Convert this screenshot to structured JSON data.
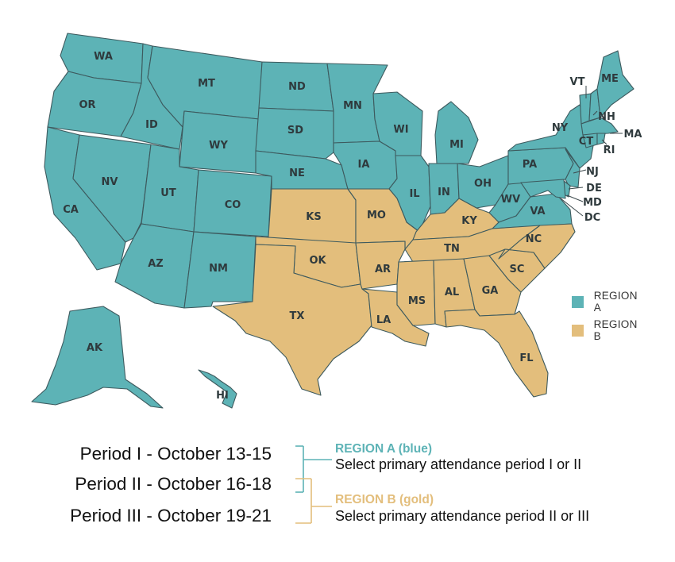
{
  "colors": {
    "region_a": "#5db3b6",
    "region_b": "#e3be7c",
    "border": "#3d5a5e"
  },
  "states": {
    "WA": "WA",
    "OR": "OR",
    "CA": "CA",
    "ID": "ID",
    "NV": "NV",
    "MT": "MT",
    "WY": "WY",
    "UT": "UT",
    "AZ": "AZ",
    "CO": "CO",
    "NM": "NM",
    "ND": "ND",
    "SD": "SD",
    "NE": "NE",
    "KS": "KS",
    "OK": "OK",
    "TX": "TX",
    "MN": "MN",
    "IA": "IA",
    "MO": "MO",
    "AR": "AR",
    "LA": "LA",
    "WI": "WI",
    "IL": "IL",
    "MI": "MI",
    "IN": "IN",
    "OH": "OH",
    "KY": "KY",
    "TN": "TN",
    "MS": "MS",
    "AL": "AL",
    "GA": "GA",
    "FL": "FL",
    "SC": "SC",
    "NC": "NC",
    "VA": "VA",
    "WV": "WV",
    "PA": "PA",
    "NY": "NY",
    "VT": "VT",
    "NH": "NH",
    "ME": "ME",
    "MA": "MA",
    "CT": "CT",
    "RI": "RI",
    "NJ": "NJ",
    "DE": "DE",
    "MD": "MD",
    "DC": "DC",
    "AK": "AK",
    "HI": "HI"
  },
  "legend": {
    "region_a": "REGION A",
    "region_b": "REGION B"
  },
  "periods": [
    "Period I - October 13-15",
    "Period II - October 16-18",
    "Period III - October 19-21"
  ],
  "region_a": {
    "title": "REGION A (blue)",
    "description": "Select primary attendance period I or II"
  },
  "region_b": {
    "title": "REGION B (gold)",
    "description": "Select primary attendance period II or III"
  }
}
